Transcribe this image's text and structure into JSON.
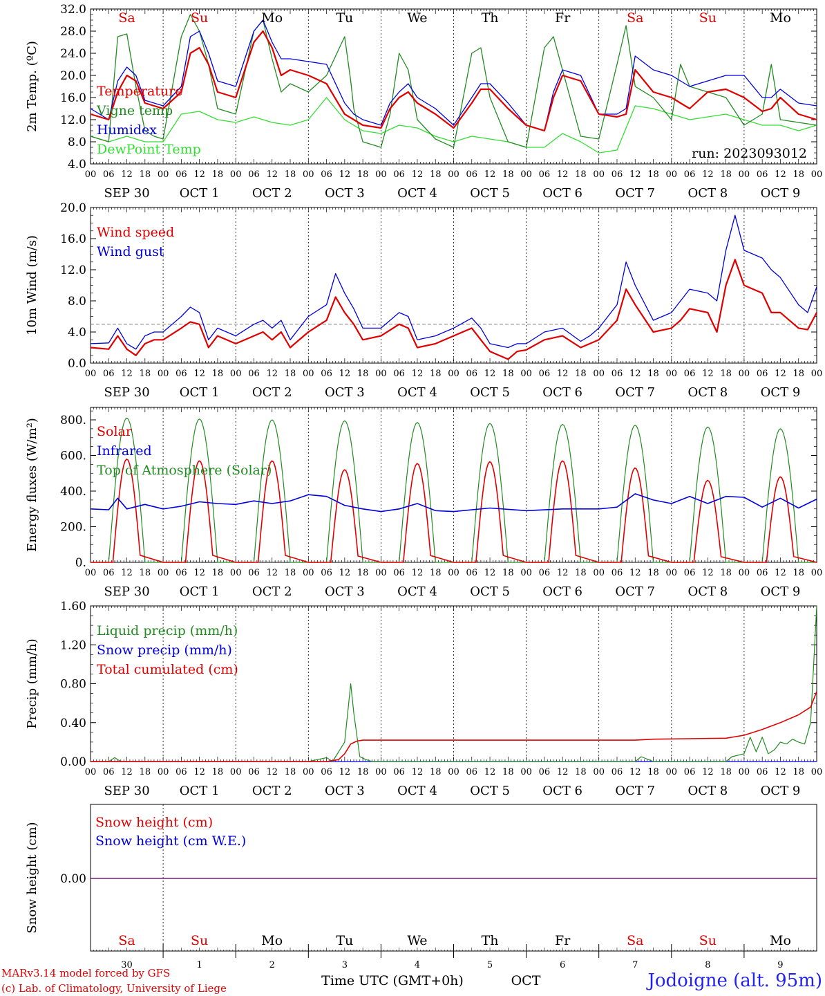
{
  "run_label": "run: 2023093012",
  "footer": {
    "model_line": "MARv3.14 model forced by GFS",
    "lab_line": "(c) Lab. of Climatology, University of Liege",
    "xlabel": "Time UTC (GMT+0h)",
    "month": "OCT",
    "station": "Jodoigne (alt. 95m)"
  },
  "x_axis": {
    "hour_ticks": [
      "00",
      "06",
      "12",
      "18"
    ],
    "day_labels": [
      "SEP 30",
      "OCT  1",
      "OCT  2",
      "OCT  3",
      "OCT  4",
      "OCT  5",
      "OCT  6",
      "OCT  7",
      "OCT  8",
      "OCT  9"
    ],
    "weekdays": [
      "Sa",
      "Su",
      "Mo",
      "Tu",
      "We",
      "Th",
      "Fr",
      "Sa",
      "Su",
      "Mo"
    ],
    "weekday_colors": [
      "#e00000",
      "#e00000",
      "#000000",
      "#000000",
      "#000000",
      "#000000",
      "#000000",
      "#e00000",
      "#e00000",
      "#000000"
    ],
    "day_numbers": [
      "30",
      "1",
      "2",
      "3",
      "4",
      "5",
      "6",
      "7",
      "8",
      "9"
    ],
    "x_range_hours": [
      0,
      240
    ]
  },
  "chart_data": [
    {
      "type": "line",
      "ylabel": "2m Temp. (ºC)",
      "ylim": [
        4,
        32
      ],
      "yticks": [
        "4.0",
        "8.0",
        "12.0",
        "16.0",
        "20.0",
        "24.0",
        "28.0",
        "32.0"
      ],
      "series": [
        {
          "name": "Temperature",
          "color": "#e00000",
          "x": [
            0,
            6,
            9,
            12,
            15,
            18,
            21,
            24,
            30,
            33,
            36,
            39,
            42,
            48,
            54,
            57,
            60,
            63,
            66,
            72,
            78,
            84,
            87,
            90,
            96,
            99,
            102,
            105,
            108,
            114,
            120,
            126,
            129,
            132,
            138,
            144,
            150,
            153,
            156,
            162,
            168,
            174,
            177,
            180,
            186,
            192,
            195,
            198,
            204,
            210,
            216,
            222,
            225,
            228,
            234,
            240
          ],
          "y": [
            13,
            12,
            17,
            20,
            19,
            15,
            14.5,
            14,
            17,
            24,
            25,
            22,
            17,
            16,
            26,
            28,
            25,
            20,
            21,
            20,
            18.5,
            13,
            12,
            11,
            10.5,
            14,
            16,
            17,
            15,
            13,
            10.5,
            15,
            17.5,
            17.5,
            14,
            11,
            10,
            16,
            20,
            19,
            13,
            12.5,
            13,
            21,
            17,
            16,
            15,
            14,
            17,
            17.5,
            16,
            13.5,
            14,
            16,
            13,
            12
          ]
        },
        {
          "name": "Vigne temp",
          "color": "#228b22",
          "x": [
            0,
            6,
            9,
            12,
            15,
            18,
            21,
            24,
            30,
            33,
            36,
            39,
            42,
            48,
            54,
            57,
            60,
            63,
            66,
            72,
            78,
            84,
            86,
            87,
            90,
            96,
            99,
            102,
            105,
            108,
            114,
            120,
            126,
            129,
            132,
            138,
            144,
            150,
            153,
            156,
            162,
            168,
            174,
            177,
            180,
            186,
            192,
            195,
            198,
            204,
            210,
            216,
            222,
            225,
            228,
            234,
            240
          ],
          "y": [
            9,
            8,
            27,
            27.5,
            18,
            10,
            9,
            8.5,
            27,
            31,
            28,
            22,
            14,
            13,
            28,
            30,
            23,
            17,
            18.5,
            17,
            20,
            27,
            19,
            14,
            8,
            7,
            13,
            24,
            21,
            12,
            8.5,
            7,
            24,
            25,
            16,
            8,
            7,
            25,
            27,
            21,
            9,
            8.5,
            22,
            29,
            18,
            16,
            12,
            22,
            18,
            17,
            16,
            11,
            13,
            22,
            12,
            11.5,
            11
          ]
        },
        {
          "name": "Humidex",
          "color": "#0000dd",
          "x": [
            0,
            6,
            9,
            12,
            15,
            18,
            21,
            24,
            30,
            33,
            36,
            39,
            42,
            48,
            54,
            57,
            60,
            63,
            66,
            72,
            78,
            84,
            87,
            90,
            96,
            99,
            102,
            105,
            108,
            114,
            120,
            126,
            129,
            132,
            138,
            144,
            150,
            153,
            156,
            162,
            168,
            174,
            177,
            180,
            186,
            192,
            195,
            198,
            204,
            210,
            216,
            222,
            225,
            228,
            234,
            240
          ],
          "y": [
            14,
            12,
            19,
            21.5,
            20,
            15.5,
            15,
            14.5,
            18,
            27,
            28,
            24,
            19,
            18,
            28,
            30,
            26,
            23,
            23,
            22.5,
            22,
            15,
            13,
            12,
            11,
            15,
            17,
            18.5,
            16,
            14,
            11,
            16,
            18.5,
            18.5,
            15,
            11,
            10,
            17,
            21,
            20,
            13,
            13,
            14,
            23.5,
            21,
            20,
            19,
            18,
            19,
            20,
            20,
            16,
            16,
            17.5,
            15,
            14.5
          ]
        },
        {
          "name": "DewPoint Temp",
          "color": "#33dd33",
          "x": [
            0,
            6,
            12,
            18,
            24,
            30,
            36,
            42,
            48,
            54,
            60,
            66,
            72,
            78,
            84,
            90,
            96,
            102,
            108,
            114,
            120,
            126,
            132,
            138,
            144,
            150,
            156,
            162,
            168,
            174,
            180,
            186,
            192,
            198,
            204,
            210,
            216,
            222,
            228,
            234,
            240
          ],
          "y": [
            9,
            8,
            9,
            8,
            8,
            13,
            13.5,
            12,
            11.5,
            12.5,
            11.5,
            11,
            12,
            16,
            12,
            10,
            9.5,
            11,
            10.5,
            9,
            8,
            9,
            8.5,
            8,
            7,
            7,
            9.5,
            8,
            6,
            6.5,
            14.5,
            14,
            13,
            12,
            12.5,
            13,
            12,
            11,
            11,
            10,
            11
          ]
        }
      ],
      "legend": [
        "Temperature",
        "Vigne temp",
        "Humidex",
        "DewPoint Temp"
      ]
    },
    {
      "type": "line",
      "ylabel": "10m Wind (m/s)",
      "ylim": [
        0,
        20
      ],
      "yticks": [
        "0.0",
        "4.0",
        "8.0",
        "12.0",
        "16.0",
        "20.0"
      ],
      "reference_line": 5,
      "series": [
        {
          "name": "Wind speed",
          "color": "#e00000",
          "x": [
            0,
            6,
            9,
            12,
            15,
            18,
            21,
            24,
            30,
            33,
            36,
            39,
            42,
            48,
            54,
            57,
            60,
            63,
            66,
            72,
            78,
            81,
            84,
            87,
            90,
            96,
            102,
            105,
            108,
            114,
            120,
            126,
            129,
            132,
            138,
            141,
            144,
            150,
            156,
            162,
            165,
            168,
            174,
            177,
            180,
            186,
            192,
            195,
            198,
            204,
            207,
            210,
            213,
            216,
            222,
            225,
            228,
            234,
            237,
            240
          ],
          "y": [
            2,
            1.8,
            3.5,
            1.8,
            1,
            2.5,
            3,
            3,
            4.5,
            5.3,
            5,
            2,
            3.5,
            2.5,
            3.5,
            4,
            3,
            4,
            2,
            4,
            5.5,
            8.5,
            6.5,
            5,
            3,
            3.5,
            5,
            4.5,
            2,
            2.5,
            3.5,
            4.5,
            3,
            1.5,
            0.5,
            1.5,
            1.7,
            3,
            3.5,
            2,
            2.5,
            3,
            5.5,
            9.5,
            7.5,
            4,
            4.5,
            5.5,
            7,
            6.5,
            4,
            10,
            13.3,
            10,
            9,
            6.5,
            6.5,
            4.5,
            4.3,
            6.5
          ]
        },
        {
          "name": "Wind gust",
          "color": "#0000dd",
          "x": [
            0,
            6,
            9,
            12,
            15,
            18,
            21,
            24,
            30,
            33,
            36,
            39,
            42,
            48,
            54,
            57,
            60,
            63,
            66,
            72,
            78,
            81,
            84,
            87,
            90,
            96,
            102,
            105,
            108,
            114,
            120,
            126,
            129,
            132,
            138,
            141,
            144,
            150,
            156,
            162,
            165,
            168,
            174,
            177,
            180,
            186,
            192,
            195,
            198,
            204,
            207,
            210,
            213,
            216,
            222,
            225,
            228,
            234,
            237,
            240
          ],
          "y": [
            2.5,
            2.6,
            4.5,
            2.5,
            1.8,
            3.5,
            4,
            4,
            6,
            7.2,
            6.5,
            3,
            4.5,
            3.5,
            5,
            5.5,
            4.5,
            5.5,
            3,
            6,
            7.5,
            11.5,
            9,
            7,
            4.5,
            4.5,
            6.5,
            6,
            3,
            3.5,
            4.5,
            5.8,
            4.5,
            2.5,
            2,
            2.5,
            2.5,
            4,
            4.5,
            2.8,
            3.5,
            4.5,
            7.5,
            13,
            10,
            5.5,
            6.5,
            8,
            9.5,
            9,
            8,
            14.5,
            19,
            14.5,
            13.5,
            12,
            11,
            7.5,
            6.5,
            9.8
          ]
        }
      ],
      "legend": [
        "Wind speed",
        "Wind gust"
      ]
    },
    {
      "type": "line",
      "ylabel": "Energy fluxes (W/m²)",
      "ylim": [
        0,
        870
      ],
      "yticks": [
        "0.",
        "200.",
        "400.",
        "600.",
        "800."
      ],
      "series": [
        {
          "name": "Solar",
          "color": "#e00000",
          "day_peaks": [
            580,
            570,
            570,
            520,
            555,
            565,
            570,
            530,
            460,
            480
          ]
        },
        {
          "name": "Infrared",
          "color": "#0000dd",
          "x": [
            0,
            6,
            9,
            12,
            18,
            24,
            30,
            36,
            42,
            48,
            54,
            60,
            66,
            72,
            78,
            84,
            90,
            96,
            102,
            108,
            114,
            120,
            132,
            144,
            156,
            168,
            174,
            180,
            186,
            192,
            198,
            204,
            210,
            216,
            222,
            228,
            234,
            240
          ],
          "y": [
            300,
            295,
            360,
            300,
            325,
            300,
            315,
            340,
            330,
            325,
            345,
            330,
            345,
            380,
            370,
            320,
            300,
            285,
            300,
            330,
            290,
            285,
            305,
            290,
            300,
            300,
            310,
            385,
            350,
            330,
            370,
            330,
            370,
            365,
            310,
            360,
            305,
            355
          ]
        },
        {
          "name": "Top of Atmosphere (Solar)",
          "color": "#228b22",
          "day_peaks": [
            810,
            805,
            800,
            795,
            785,
            780,
            775,
            770,
            760,
            750
          ]
        }
      ],
      "legend": [
        "Solar",
        "Infrared",
        "Top of Atmosphere (Solar)"
      ]
    },
    {
      "type": "line",
      "ylabel": "Precip (mm/h)",
      "ylim": [
        0,
        1.6
      ],
      "yticks": [
        "0.00",
        "0.40",
        "0.80",
        "1.20",
        "1.60"
      ],
      "series": [
        {
          "name": "Liquid precip (mm/h)",
          "color": "#228b22",
          "x": [
            0,
            6,
            8,
            10,
            72,
            78,
            80,
            84,
            86,
            87,
            89,
            91,
            93,
            96,
            180,
            182,
            186,
            210,
            212,
            216,
            218,
            220,
            222,
            224,
            226,
            228,
            230,
            232,
            234,
            236,
            238,
            240
          ],
          "y": [
            0,
            0,
            0.04,
            0,
            0,
            0.04,
            0,
            0.2,
            0.8,
            0.5,
            0.05,
            0.02,
            0,
            0,
            0,
            0.05,
            0,
            0,
            0.05,
            0.08,
            0.25,
            0.1,
            0.25,
            0.08,
            0.12,
            0.2,
            0.18,
            0.23,
            0.2,
            0.18,
            0.4,
            1.6
          ]
        },
        {
          "name": "Snow precip (mm/h)",
          "color": "#0000dd",
          "x": [
            0,
            240
          ],
          "y": [
            0,
            0
          ]
        },
        {
          "name": "Total cumulated (cm)",
          "color": "#e00000",
          "x": [
            0,
            78,
            82,
            84,
            86,
            88,
            90,
            96,
            180,
            186,
            210,
            216,
            222,
            228,
            234,
            238,
            240
          ],
          "y": [
            0,
            0,
            0.02,
            0.08,
            0.18,
            0.21,
            0.22,
            0.22,
            0.22,
            0.23,
            0.24,
            0.27,
            0.33,
            0.4,
            0.48,
            0.56,
            0.72
          ]
        }
      ],
      "legend": [
        "Liquid precip (mm/h)",
        "Snow precip (mm/h)",
        "Total cumulated (cm)"
      ]
    },
    {
      "type": "line",
      "ylabel": "Snow height (cm)",
      "yticks": [
        "0.00"
      ],
      "series": [
        {
          "name": "Snow height (cm)",
          "color": "#e00000",
          "x": [
            0,
            240
          ],
          "y": [
            0,
            0
          ]
        },
        {
          "name": "Snow height (cm W.E.)",
          "color": "#0000dd",
          "x": [
            0,
            240
          ],
          "y": [
            0,
            0
          ]
        }
      ],
      "legend": [
        "Snow height (cm)",
        "Snow height (cm W.E.)"
      ]
    }
  ]
}
